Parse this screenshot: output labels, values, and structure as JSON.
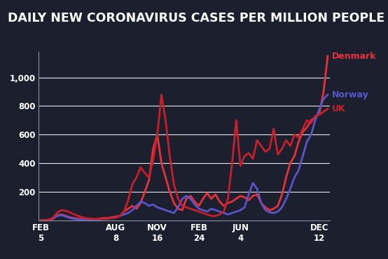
{
  "chart_data": {
    "type": "line",
    "title": "DAILY NEW CORONAVIRUS CASES PER MILLION PEOPLE",
    "categories": [
      "FEB\n5",
      null,
      null,
      null,
      null,
      null,
      null,
      null,
      null,
      null,
      null,
      null,
      null,
      null,
      null,
      null,
      null,
      null,
      "AUG\n8",
      null,
      null,
      null,
      null,
      null,
      null,
      null,
      null,
      null,
      "NOV\n16",
      null,
      null,
      null,
      null,
      null,
      null,
      null,
      null,
      null,
      "FEB\n24",
      null,
      null,
      null,
      null,
      null,
      null,
      null,
      null,
      null,
      "JUN\n4",
      null,
      null,
      null,
      null,
      null,
      null,
      null,
      null,
      null,
      null,
      null,
      null,
      null,
      null,
      null,
      null,
      null,
      null,
      "DEC\n12",
      null,
      null
    ],
    "series": [
      {
        "name": "Denmark",
        "color": "#e8313a",
        "values": [
          0,
          0,
          2,
          10,
          35,
          40,
          30,
          20,
          15,
          10,
          8,
          5,
          5,
          5,
          10,
          15,
          15,
          20,
          25,
          30,
          60,
          80,
          100,
          80,
          120,
          200,
          280,
          500,
          600,
          400,
          300,
          200,
          120,
          80,
          70,
          150,
          170,
          130,
          100,
          150,
          190,
          150,
          180,
          130,
          100,
          120,
          130,
          150,
          170,
          160,
          140,
          170,
          180,
          120,
          90,
          70,
          80,
          100,
          180,
          300,
          400,
          450,
          550,
          620,
          650,
          700,
          720,
          750,
          900,
          1150
        ]
      },
      {
        "name": "Norway",
        "color": "#5a55c8",
        "values": [
          0,
          0,
          2,
          15,
          30,
          35,
          25,
          15,
          8,
          5,
          3,
          3,
          3,
          3,
          5,
          8,
          10,
          15,
          20,
          30,
          40,
          50,
          70,
          100,
          130,
          120,
          100,
          110,
          90,
          80,
          70,
          60,
          50,
          90,
          150,
          170,
          150,
          110,
          80,
          70,
          60,
          80,
          70,
          60,
          50,
          40,
          50,
          60,
          70,
          90,
          180,
          260,
          220,
          120,
          70,
          55,
          50,
          60,
          90,
          150,
          220,
          300,
          350,
          450,
          550,
          600,
          700,
          780,
          850,
          880
        ]
      },
      {
        "name": "UK",
        "color": "#c8202a",
        "values": [
          0,
          1,
          3,
          20,
          55,
          70,
          65,
          55,
          40,
          30,
          20,
          12,
          10,
          8,
          8,
          10,
          12,
          15,
          18,
          30,
          60,
          140,
          250,
          300,
          370,
          330,
          300,
          420,
          600,
          880,
          700,
          450,
          250,
          150,
          100,
          90,
          80,
          70,
          60,
          50,
          40,
          30,
          30,
          40,
          60,
          150,
          400,
          700,
          380,
          450,
          470,
          430,
          560,
          520,
          480,
          500,
          640,
          460,
          500,
          560,
          520,
          600,
          580,
          640,
          700,
          680,
          730,
          740,
          760,
          780
        ]
      }
    ],
    "ylim": [
      0,
      1180
    ],
    "yticks": [
      200,
      400,
      600,
      800,
      {
        "value": 1000,
        "label": "1,000"
      }
    ],
    "grid": true
  }
}
